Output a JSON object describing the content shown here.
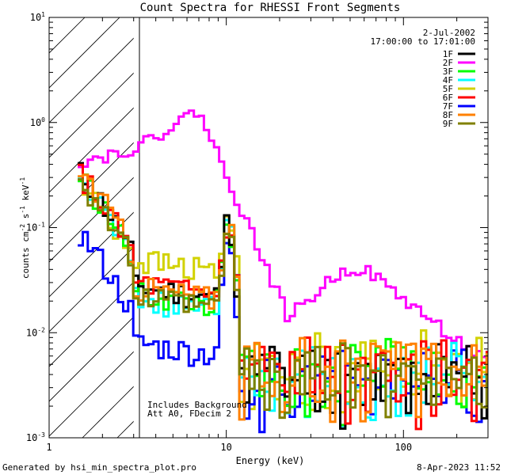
{
  "chart_data": {
    "type": "line",
    "title": "Count Spectra for RHESSI Front Segments",
    "xlabel": "Energy (keV)",
    "ylabel": "counts cm^-2 s^-1 keV^-1",
    "xscale": "log",
    "yscale": "log",
    "xlim": [
      1,
      300
    ],
    "ylim": [
      0.001,
      10
    ],
    "x_ticks": [
      {
        "value": 1,
        "label": "1"
      },
      {
        "value": 10,
        "label": "10"
      },
      {
        "value": 100,
        "label": "100"
      }
    ],
    "y_ticks": [
      {
        "value": 0.001,
        "base": "10",
        "exp": "-3"
      },
      {
        "value": 0.01,
        "base": "10",
        "exp": "-2"
      },
      {
        "value": 0.1,
        "base": "10",
        "exp": "-1"
      },
      {
        "value": 1,
        "base": "10",
        "exp": "0"
      },
      {
        "value": 10,
        "base": "10",
        "exp": "1"
      }
    ],
    "shaded_region": {
      "x_from": 1,
      "x_to": 3,
      "style": "diagonal-hatch"
    },
    "date": "2-Jul-2002",
    "time_range": "17:00:00 to 17:01:00",
    "annotations": [
      "Includes Background",
      "Att A0, FDecim 2"
    ],
    "series": [
      {
        "name": "1F",
        "color": "#000000",
        "base": 0.028,
        "attn": 0.34,
        "line_amp": 0.1,
        "noise": 0.004,
        "seed": 11
      },
      {
        "name": "2F",
        "color": "#ff00ff",
        "type": "main",
        "seed": 22
      },
      {
        "name": "3F",
        "color": "#00ff00",
        "base": 0.024,
        "attn": 0.32,
        "line_amp": 0.085,
        "noise": 0.004,
        "seed": 33
      },
      {
        "name": "4F",
        "color": "#00ffff",
        "base": 0.022,
        "attn": 0.3,
        "line_amp": 0.14,
        "noise": 0.0038,
        "seed": 44
      },
      {
        "name": "5F",
        "color": "#d2d200",
        "base": 0.05,
        "attn": 0.25,
        "line_amp": 0.09,
        "noise": 0.005,
        "seed": 55
      },
      {
        "name": "6F",
        "color": "#ff0000",
        "base": 0.03,
        "attn": 0.33,
        "line_amp": 0.09,
        "noise": 0.0042,
        "seed": 66
      },
      {
        "name": "7F",
        "color": "#0000ff",
        "base": 0.008,
        "attn": 0.09,
        "line_amp": 0.07,
        "noise": 0.0035,
        "seed": 77
      },
      {
        "name": "8F",
        "color": "#ff8000",
        "base": 0.028,
        "attn": 0.36,
        "line_amp": 0.11,
        "noise": 0.0042,
        "seed": 88
      },
      {
        "name": "9F",
        "color": "#808000",
        "base": 0.022,
        "attn": 0.3,
        "line_amp": 0.08,
        "noise": 0.0038,
        "seed": 99
      }
    ]
  },
  "footer": {
    "left": "Generated by hsi_min_spectra_plot.pro",
    "right": "8-Apr-2023 11:52"
  }
}
